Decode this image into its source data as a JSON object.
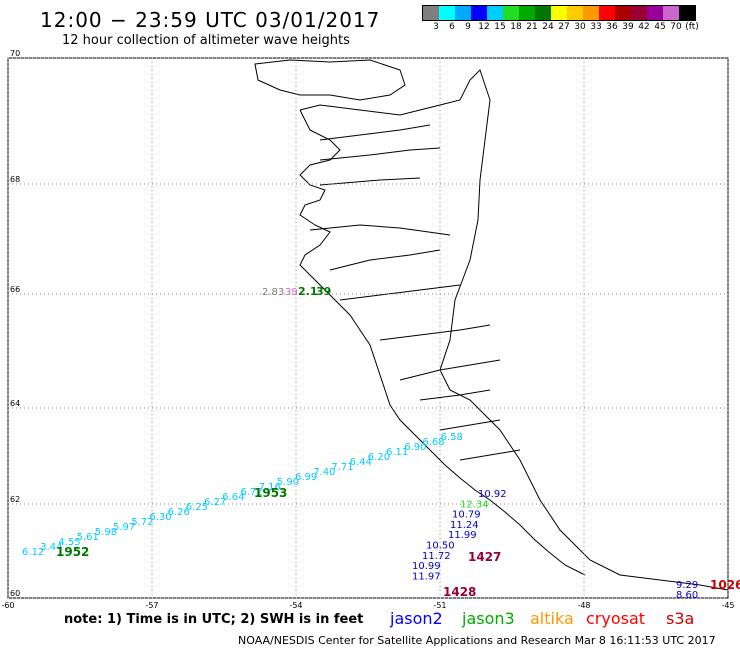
{
  "title": "12:00 − 23:59 UTC 03/01/2017",
  "subtitle": "12 hour collection of altimeter wave heights",
  "legend": {
    "colors": [
      "#7f7f7f",
      "#00ffff",
      "#00aaff",
      "#0000ff",
      "#00ccff",
      "#22dd22",
      "#00aa00",
      "#007700",
      "#ffff00",
      "#ffcc00",
      "#ff9900",
      "#ff0000",
      "#aa0000",
      "#990033",
      "#990099",
      "#cc66cc",
      "#000000"
    ],
    "labels": [
      "3",
      "6",
      "9",
      "12",
      "15",
      "18",
      "21",
      "24",
      "27",
      "30",
      "33",
      "36",
      "39",
      "42",
      "45",
      "70",
      "(ft)"
    ]
  },
  "axes": {
    "lon_ticks": [
      "-60",
      "-57",
      "-54",
      "-51",
      "-48",
      "-45"
    ],
    "lat_ticks": [
      "70",
      "68",
      "66",
      "64",
      "62",
      "60"
    ]
  },
  "tracks": [
    {
      "satellite": "jason2",
      "color": "#00aaff",
      "label": "1952",
      "label_color": "#007700",
      "values": [
        "6.12",
        "3.44",
        "4.55",
        "5.61",
        "5.98",
        "5.97",
        "5.72",
        "6.30",
        "6.26",
        "6.25",
        "6.27",
        "6.64",
        "6.72",
        "7.16",
        "5.90",
        "6.99",
        "7.40",
        "7.71",
        "6.44",
        "6.20",
        "6.11",
        "6.90",
        "6.68",
        "6.58"
      ]
    },
    {
      "satellite": "jason3",
      "color": "#007700",
      "label": "1953",
      "values": []
    },
    {
      "satellite": "jason2-south",
      "color": "#0000cc",
      "values": [
        "10.92",
        "12.34",
        "10.79",
        "11.24",
        "11.99",
        "10.50",
        "11.72",
        "10.99",
        "11.97"
      ],
      "label": "1427",
      "label2": "1428",
      "label_color": "#990033"
    },
    {
      "satellite": "s3a",
      "color": "#0000cc",
      "values": [
        "9.29",
        "8.60"
      ],
      "label": "1026",
      "label_color": "#cc0000"
    }
  ],
  "north_points": {
    "values": [
      "2.83",
      "39",
      "2.1",
      "39"
    ]
  },
  "satellites": [
    {
      "name": "jason2",
      "color": "#0000ff"
    },
    {
      "name": "jason3",
      "color": "#00aa00"
    },
    {
      "name": "altika",
      "color": "#ff9900"
    },
    {
      "name": "cryosat",
      "color": "#ff0000"
    },
    {
      "name": "s3a",
      "color": "#cc0000"
    }
  ],
  "note": "note:  1) Time is in UTC;  2) SWH is in feet",
  "credit": "NOAA/NESDIS Center for Satellite Applications and Research   Mar  8 16:11:53 UTC 2017"
}
